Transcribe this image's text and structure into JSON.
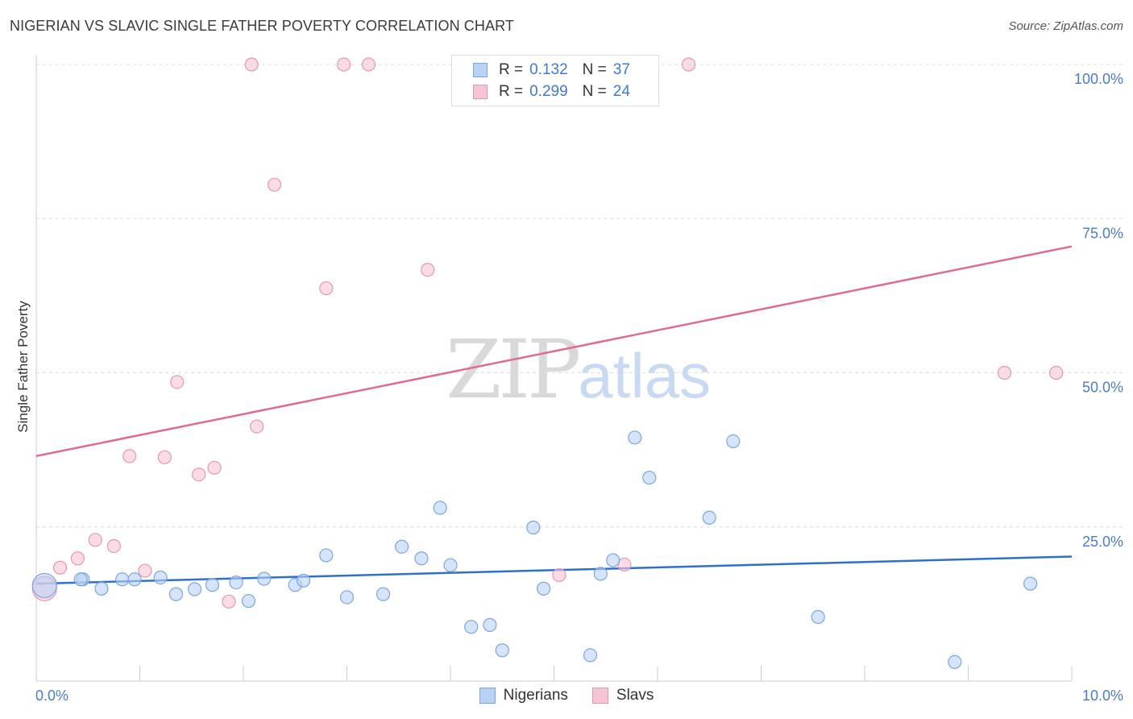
{
  "header": {
    "title": "NIGERIAN VS SLAVIC SINGLE FATHER POVERTY CORRELATION CHART",
    "source": "Source: ZipAtlas.com"
  },
  "watermark": {
    "zip": "ZIP",
    "atlas": "atlas"
  },
  "legend": {
    "rows": [
      {
        "r_label": "R =",
        "r_value": "0.132",
        "n_label": "N =",
        "n_value": "37"
      },
      {
        "r_label": "R =",
        "r_value": "0.299",
        "n_label": "N =",
        "n_value": "24"
      }
    ]
  },
  "bottom_legend": {
    "nigerians": "Nigerians",
    "slavs": "Slavs"
  },
  "colors": {
    "nigerians_fill": "#b9d2f3",
    "nigerians_stroke": "#7aa6e0",
    "nigerians_line": "#2f6fce",
    "slavs_fill": "#f7c4d4",
    "slavs_stroke": "#e796b1",
    "slavs_line": "#e06a93",
    "grid": "#dddddd",
    "tick_text": "#4a7cc9"
  },
  "chart_data": {
    "type": "scatter",
    "title": "NIGERIAN VS SLAVIC SINGLE FATHER POVERTY CORRELATION CHART",
    "xlabel": "",
    "ylabel": "Single Father Poverty",
    "xlim": [
      0,
      10
    ],
    "ylim": [
      0,
      100
    ],
    "x_tick_labels": {
      "min": "0.0%",
      "max": "10.0%"
    },
    "y_ticks": [
      {
        "value": 25,
        "label": "25.0%"
      },
      {
        "value": 50,
        "label": "50.0%"
      },
      {
        "value": 75,
        "label": "75.0%"
      },
      {
        "value": 100,
        "label": "100.0%"
      }
    ],
    "series": [
      {
        "name": "Nigerians",
        "R": 0.132,
        "N": 37,
        "trend": {
          "x0": 0,
          "y0": 15.8,
          "x1": 10,
          "y1": 20.2
        },
        "points": [
          {
            "x": 0.08,
            "y": 15.5,
            "big": true
          },
          {
            "x": 0.45,
            "y": 16.5
          },
          {
            "x": 0.43,
            "y": 16.5
          },
          {
            "x": 0.63,
            "y": 15.0
          },
          {
            "x": 0.83,
            "y": 16.5
          },
          {
            "x": 0.95,
            "y": 16.5
          },
          {
            "x": 1.2,
            "y": 16.8
          },
          {
            "x": 1.35,
            "y": 14.1
          },
          {
            "x": 1.53,
            "y": 14.9
          },
          {
            "x": 1.7,
            "y": 15.6
          },
          {
            "x": 1.93,
            "y": 16.0
          },
          {
            "x": 2.05,
            "y": 13.0
          },
          {
            "x": 2.2,
            "y": 16.6
          },
          {
            "x": 2.5,
            "y": 15.6
          },
          {
            "x": 2.58,
            "y": 16.3
          },
          {
            "x": 2.8,
            "y": 20.4
          },
          {
            "x": 3.0,
            "y": 13.6
          },
          {
            "x": 3.35,
            "y": 14.1
          },
          {
            "x": 3.53,
            "y": 21.8
          },
          {
            "x": 3.72,
            "y": 19.9
          },
          {
            "x": 3.9,
            "y": 28.1
          },
          {
            "x": 4.0,
            "y": 18.8
          },
          {
            "x": 4.2,
            "y": 8.8
          },
          {
            "x": 4.38,
            "y": 9.1
          },
          {
            "x": 4.5,
            "y": 5.0
          },
          {
            "x": 4.8,
            "y": 24.9
          },
          {
            "x": 4.9,
            "y": 15.0
          },
          {
            "x": 5.35,
            "y": 4.2
          },
          {
            "x": 5.45,
            "y": 17.4
          },
          {
            "x": 5.57,
            "y": 19.6
          },
          {
            "x": 5.78,
            "y": 39.5
          },
          {
            "x": 5.92,
            "y": 33.0
          },
          {
            "x": 6.5,
            "y": 26.5
          },
          {
            "x": 6.73,
            "y": 38.9
          },
          {
            "x": 7.55,
            "y": 10.4
          },
          {
            "x": 8.87,
            "y": 3.1
          },
          {
            "x": 9.6,
            "y": 15.8
          }
        ]
      },
      {
        "name": "Slavs",
        "R": 0.299,
        "N": 24,
        "trend": {
          "x0": 0,
          "y0": 36.5,
          "x1": 10,
          "y1": 70.5
        },
        "points": [
          {
            "x": 0.08,
            "y": 15.0,
            "big": true
          },
          {
            "x": 0.23,
            "y": 18.4
          },
          {
            "x": 0.4,
            "y": 19.9
          },
          {
            "x": 0.57,
            "y": 22.9
          },
          {
            "x": 0.75,
            "y": 21.9
          },
          {
            "x": 0.9,
            "y": 36.5
          },
          {
            "x": 1.05,
            "y": 17.9
          },
          {
            "x": 1.24,
            "y": 36.3
          },
          {
            "x": 1.36,
            "y": 48.5
          },
          {
            "x": 1.57,
            "y": 33.5
          },
          {
            "x": 1.72,
            "y": 34.6
          },
          {
            "x": 1.86,
            "y": 12.9
          },
          {
            "x": 2.08,
            "y": 100.0
          },
          {
            "x": 2.13,
            "y": 41.3
          },
          {
            "x": 2.3,
            "y": 80.5
          },
          {
            "x": 2.8,
            "y": 63.7
          },
          {
            "x": 2.97,
            "y": 100.0
          },
          {
            "x": 3.21,
            "y": 100.0
          },
          {
            "x": 3.78,
            "y": 66.7
          },
          {
            "x": 5.05,
            "y": 17.2
          },
          {
            "x": 5.68,
            "y": 18.9
          },
          {
            "x": 6.3,
            "y": 100.0
          },
          {
            "x": 9.35,
            "y": 50.0
          },
          {
            "x": 9.85,
            "y": 50.0
          }
        ]
      }
    ]
  }
}
